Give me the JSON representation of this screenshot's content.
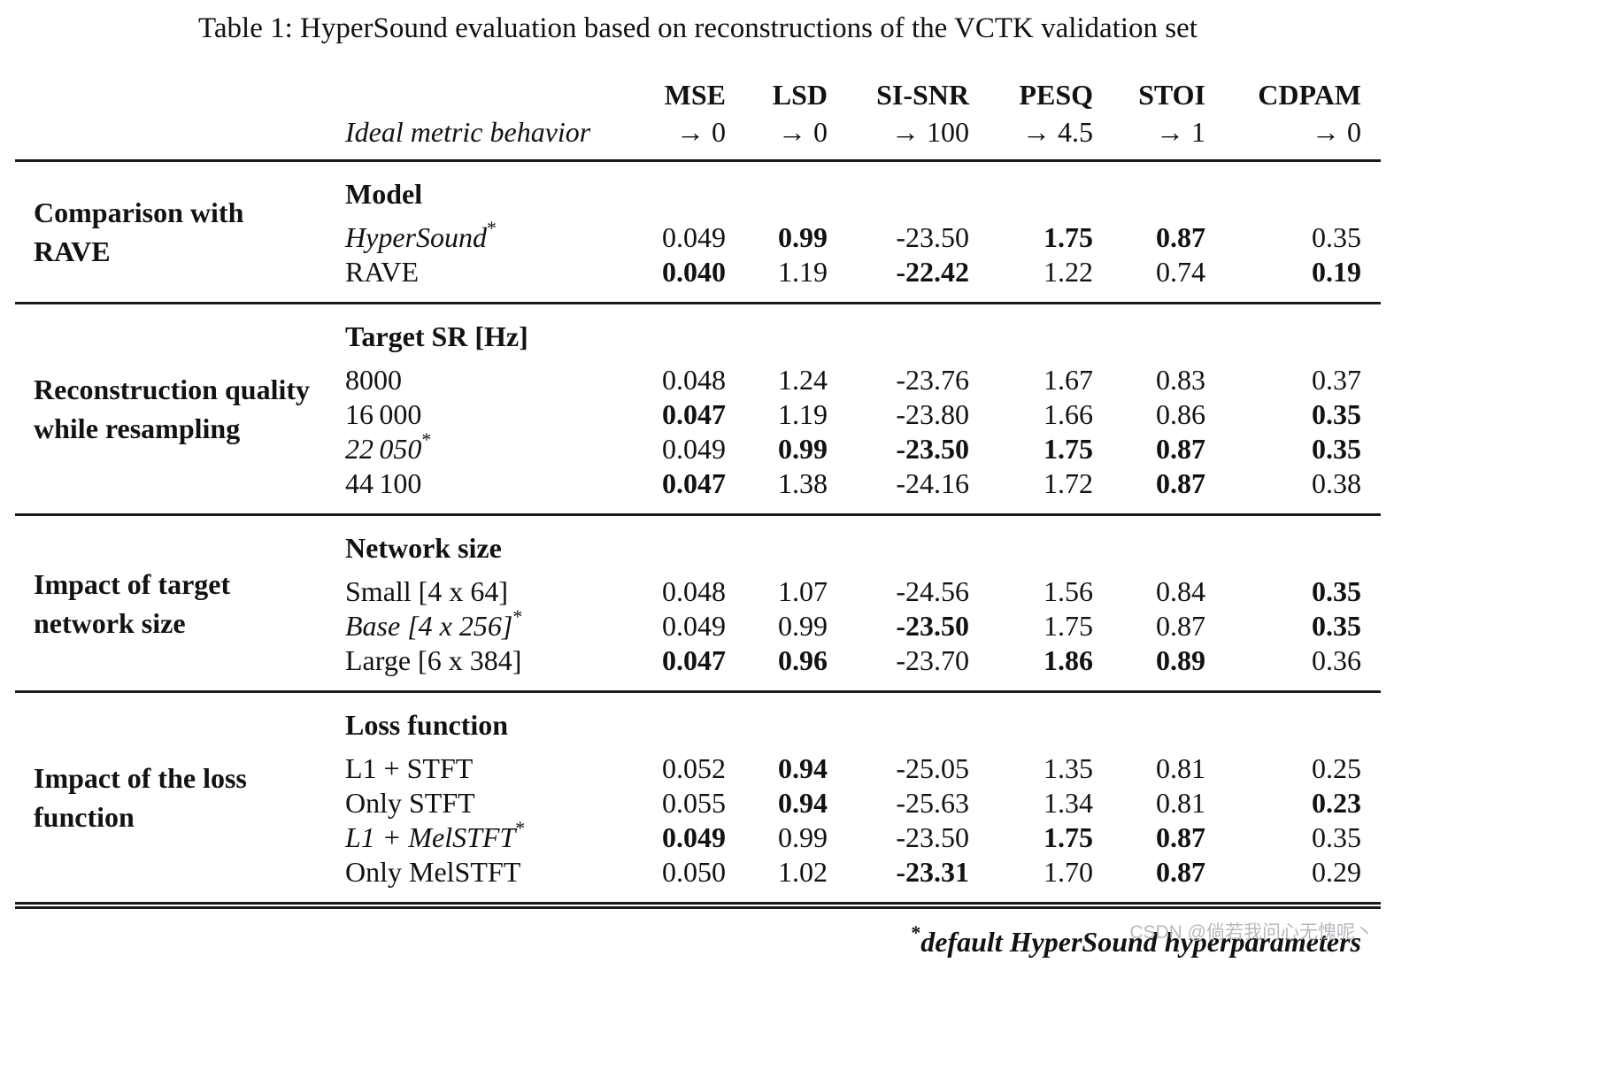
{
  "caption": "Table 1: HyperSound evaluation based on reconstructions of the VCTK validation set",
  "header": {
    "ideal_behavior_label": "Ideal metric behavior",
    "columns": [
      {
        "name": "MSE",
        "ideal": "→ 0"
      },
      {
        "name": "LSD",
        "ideal": "→ 0"
      },
      {
        "name": "SI-SNR",
        "ideal": "→ 100"
      },
      {
        "name": "PESQ",
        "ideal": "→ 4.5"
      },
      {
        "name": "STOI",
        "ideal": "→ 1"
      },
      {
        "name": "CDPAM",
        "ideal": "→ 0"
      }
    ]
  },
  "sections": [
    {
      "group_label": "Comparison with RAVE",
      "subheader": "Model",
      "rows": [
        {
          "label": "HyperSound",
          "star": "*",
          "italic": true,
          "values": [
            "0.049",
            "0.99",
            "-23.50",
            "1.75",
            "0.87",
            "0.35"
          ],
          "bold": [
            0,
            1,
            0,
            1,
            1,
            0
          ]
        },
        {
          "label": "RAVE",
          "italic": false,
          "values": [
            "0.040",
            "1.19",
            "-22.42",
            "1.22",
            "0.74",
            "0.19"
          ],
          "bold": [
            1,
            0,
            1,
            0,
            0,
            1
          ]
        }
      ]
    },
    {
      "group_label": "Reconstruction quality while resampling",
      "subheader": "Target SR [Hz]",
      "rows": [
        {
          "label": "8000",
          "italic": false,
          "values": [
            "0.048",
            "1.24",
            "-23.76",
            "1.67",
            "0.83",
            "0.37"
          ],
          "bold": [
            0,
            0,
            0,
            0,
            0,
            0
          ]
        },
        {
          "label": "16 000",
          "italic": false,
          "values": [
            "0.047",
            "1.19",
            "-23.80",
            "1.66",
            "0.86",
            "0.35"
          ],
          "bold": [
            1,
            0,
            0,
            0,
            0,
            1
          ]
        },
        {
          "label": "22 050",
          "star": "*",
          "italic": true,
          "values": [
            "0.049",
            "0.99",
            "-23.50",
            "1.75",
            "0.87",
            "0.35"
          ],
          "bold": [
            0,
            1,
            1,
            1,
            1,
            1
          ]
        },
        {
          "label": "44 100",
          "italic": false,
          "values": [
            "0.047",
            "1.38",
            "-24.16",
            "1.72",
            "0.87",
            "0.38"
          ],
          "bold": [
            1,
            0,
            0,
            0,
            1,
            0
          ]
        }
      ]
    },
    {
      "group_label": "Impact of target network size",
      "subheader": "Network size",
      "rows": [
        {
          "label": "Small [4 x 64]",
          "italic": false,
          "values": [
            "0.048",
            "1.07",
            "-24.56",
            "1.56",
            "0.84",
            "0.35"
          ],
          "bold": [
            0,
            0,
            0,
            0,
            0,
            1
          ]
        },
        {
          "label": "Base [4 x 256]",
          "star": "*",
          "italic": true,
          "values": [
            "0.049",
            "0.99",
            "-23.50",
            "1.75",
            "0.87",
            "0.35"
          ],
          "bold": [
            0,
            0,
            1,
            0,
            0,
            1
          ]
        },
        {
          "label": "Large [6 x 384]",
          "italic": false,
          "values": [
            "0.047",
            "0.96",
            "-23.70",
            "1.86",
            "0.89",
            "0.36"
          ],
          "bold": [
            1,
            1,
            0,
            1,
            1,
            0
          ]
        }
      ]
    },
    {
      "group_label": "Impact of the loss function",
      "subheader": "Loss function",
      "rows": [
        {
          "label": "L1 + STFT",
          "italic": false,
          "values": [
            "0.052",
            "0.94",
            "-25.05",
            "1.35",
            "0.81",
            "0.25"
          ],
          "bold": [
            0,
            1,
            0,
            0,
            0,
            0
          ]
        },
        {
          "label": "Only STFT",
          "italic": false,
          "values": [
            "0.055",
            "0.94",
            "-25.63",
            "1.34",
            "0.81",
            "0.23"
          ],
          "bold": [
            0,
            1,
            0,
            0,
            0,
            1
          ]
        },
        {
          "label": "L1 + MelSTFT",
          "star": "*",
          "italic": true,
          "values": [
            "0.049",
            "0.99",
            "-23.50",
            "1.75",
            "0.87",
            "0.35"
          ],
          "bold": [
            1,
            0,
            0,
            1,
            1,
            0
          ]
        },
        {
          "label": "Only MelSTFT",
          "italic": false,
          "values": [
            "0.050",
            "1.02",
            "-23.31",
            "1.70",
            "0.87",
            "0.29"
          ],
          "bold": [
            0,
            0,
            1,
            0,
            1,
            0
          ]
        }
      ]
    }
  ],
  "footnote": {
    "star": "*",
    "text": "default HyperSound hyperparameters"
  },
  "watermark": "CSDN @倘若我问心无愧呢丶"
}
